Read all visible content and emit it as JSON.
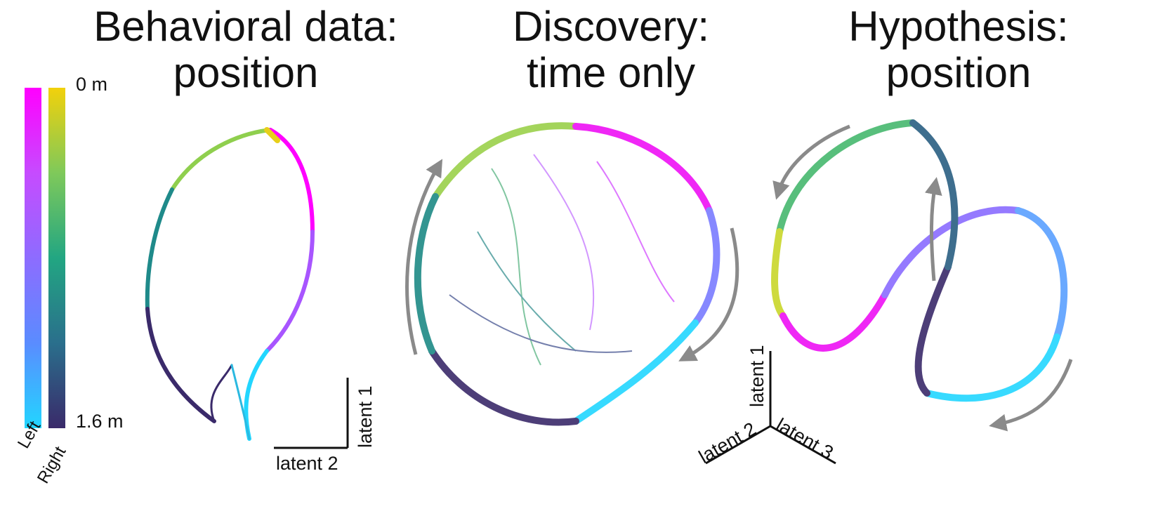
{
  "panels": {
    "behavioral": {
      "title_line1": "Behavioral data:",
      "title_line2": "position"
    },
    "discovery": {
      "title_line1": "Discovery:",
      "title_line2": "time only"
    },
    "hypothesis": {
      "title_line1": "Hypothesis:",
      "title_line2": "position"
    }
  },
  "colorbar": {
    "top_label": "0 m",
    "bottom_label": "1.6 m",
    "left_name": "Left",
    "right_name": "Right",
    "left_gradient": [
      "#ff00ff",
      "#c64bff",
      "#8d6cff",
      "#5a8cff",
      "#22d6ff"
    ],
    "right_gradient": [
      "#f2d10b",
      "#7fc95a",
      "#22a682",
      "#2a6f8c",
      "#3a2a6a"
    ]
  },
  "axes": {
    "panel1": {
      "x": "latent 2",
      "y": "latent 1"
    },
    "panel3": {
      "a": "latent 1",
      "b": "latent 2",
      "c": "latent 3"
    }
  },
  "colors": {
    "arrow": "#8a8a8a",
    "axis": "#111111"
  }
}
